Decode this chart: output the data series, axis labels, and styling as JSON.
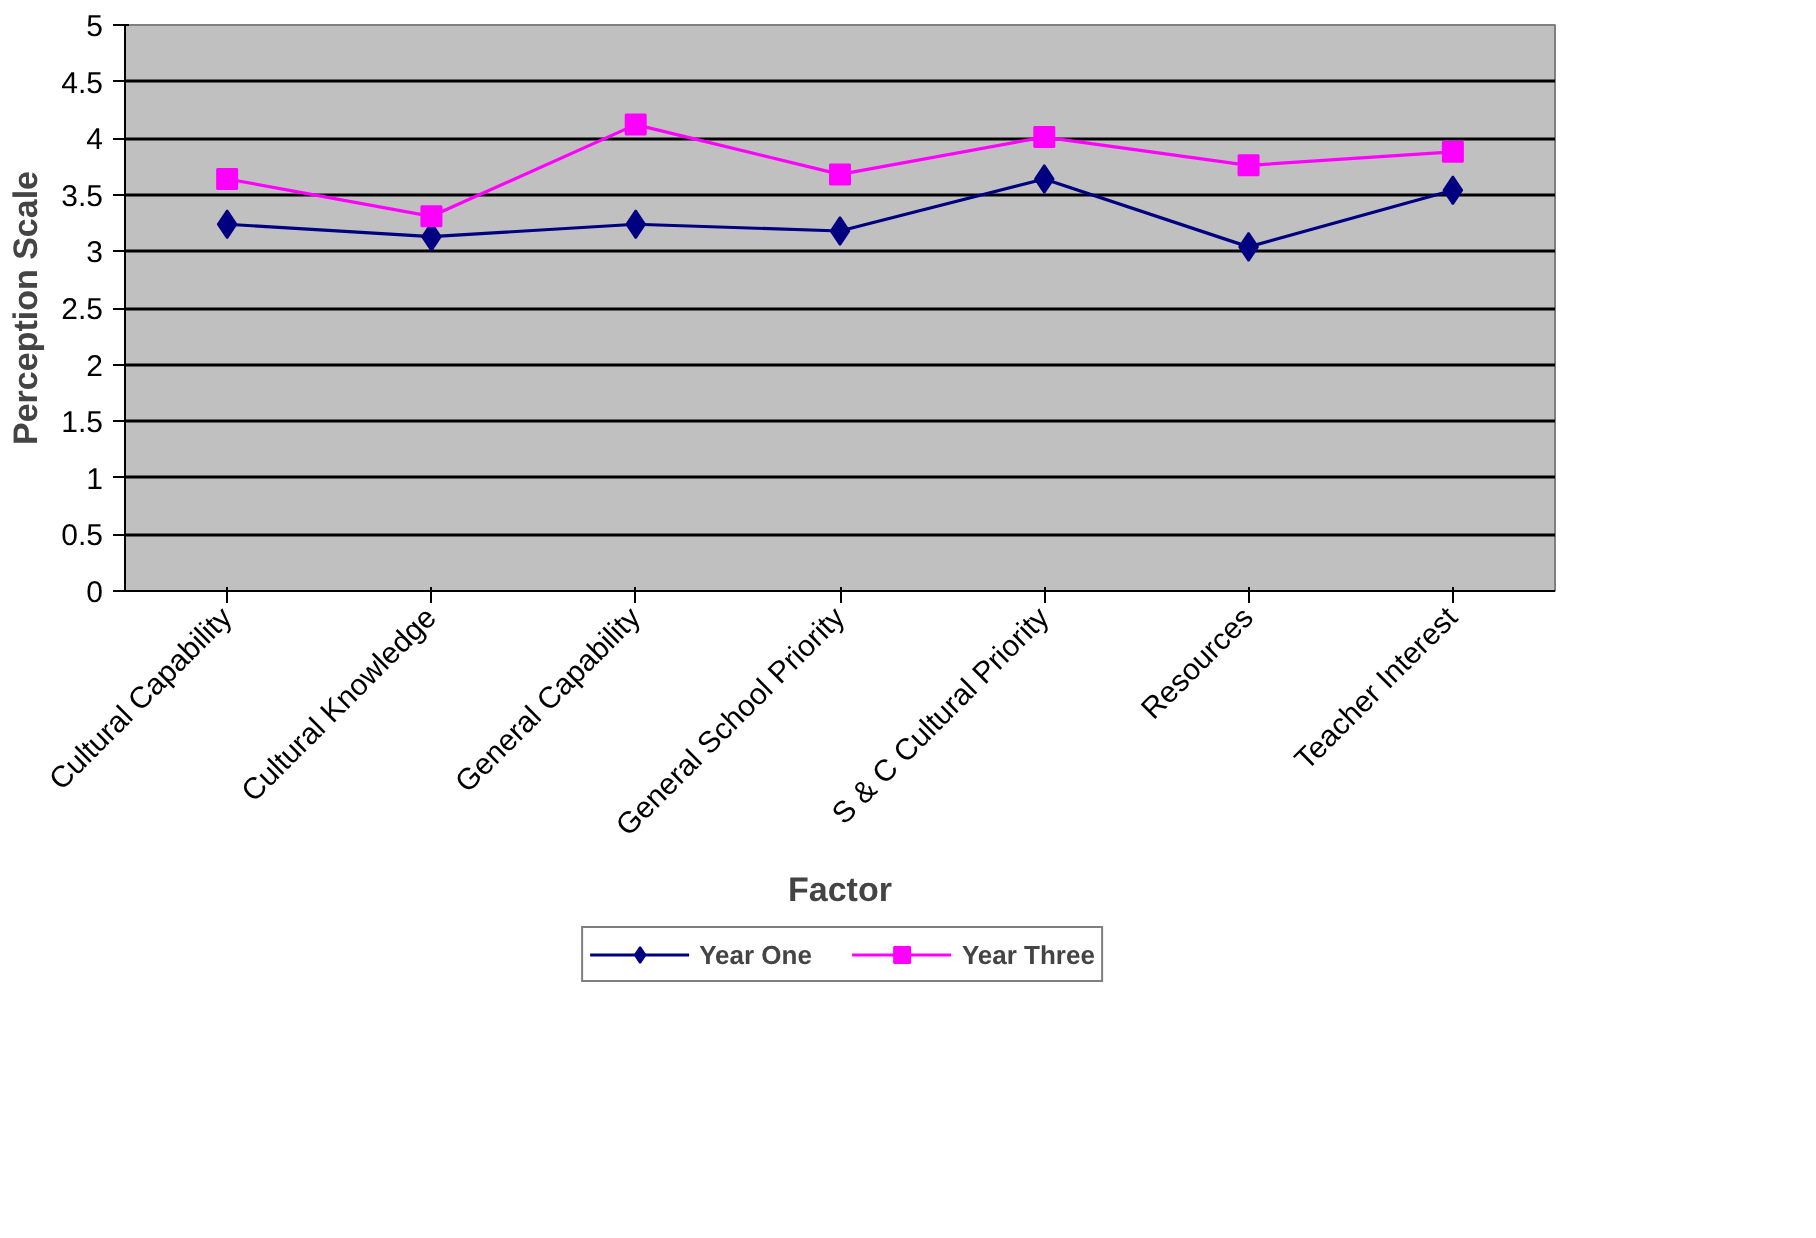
{
  "chart_data": {
    "type": "line",
    "xlabel": "Factor",
    "ylabel": "Perception Scale",
    "categories": [
      "Cultural Capability",
      "Cultural Knowledge",
      "General Capability",
      "General School Priority",
      "S & C Cultural Priority",
      "Resources",
      "Teacher Interest"
    ],
    "series": [
      {
        "name": "Year One",
        "color": "#000080",
        "marker": "diamond",
        "values": [
          3.24,
          3.13,
          3.24,
          3.18,
          3.64,
          3.04,
          3.54
        ]
      },
      {
        "name": "Year Three",
        "color": "#ff00ff",
        "marker": "square",
        "values": [
          3.64,
          3.31,
          4.12,
          3.68,
          4.01,
          3.76,
          3.88
        ]
      }
    ],
    "ylim": [
      0,
      5
    ],
    "yticks": [
      0,
      0.5,
      1,
      1.5,
      2,
      2.5,
      3,
      3.5,
      4,
      4.5,
      5
    ],
    "grid": "y",
    "legend": "bottom",
    "line_style": "solid"
  }
}
